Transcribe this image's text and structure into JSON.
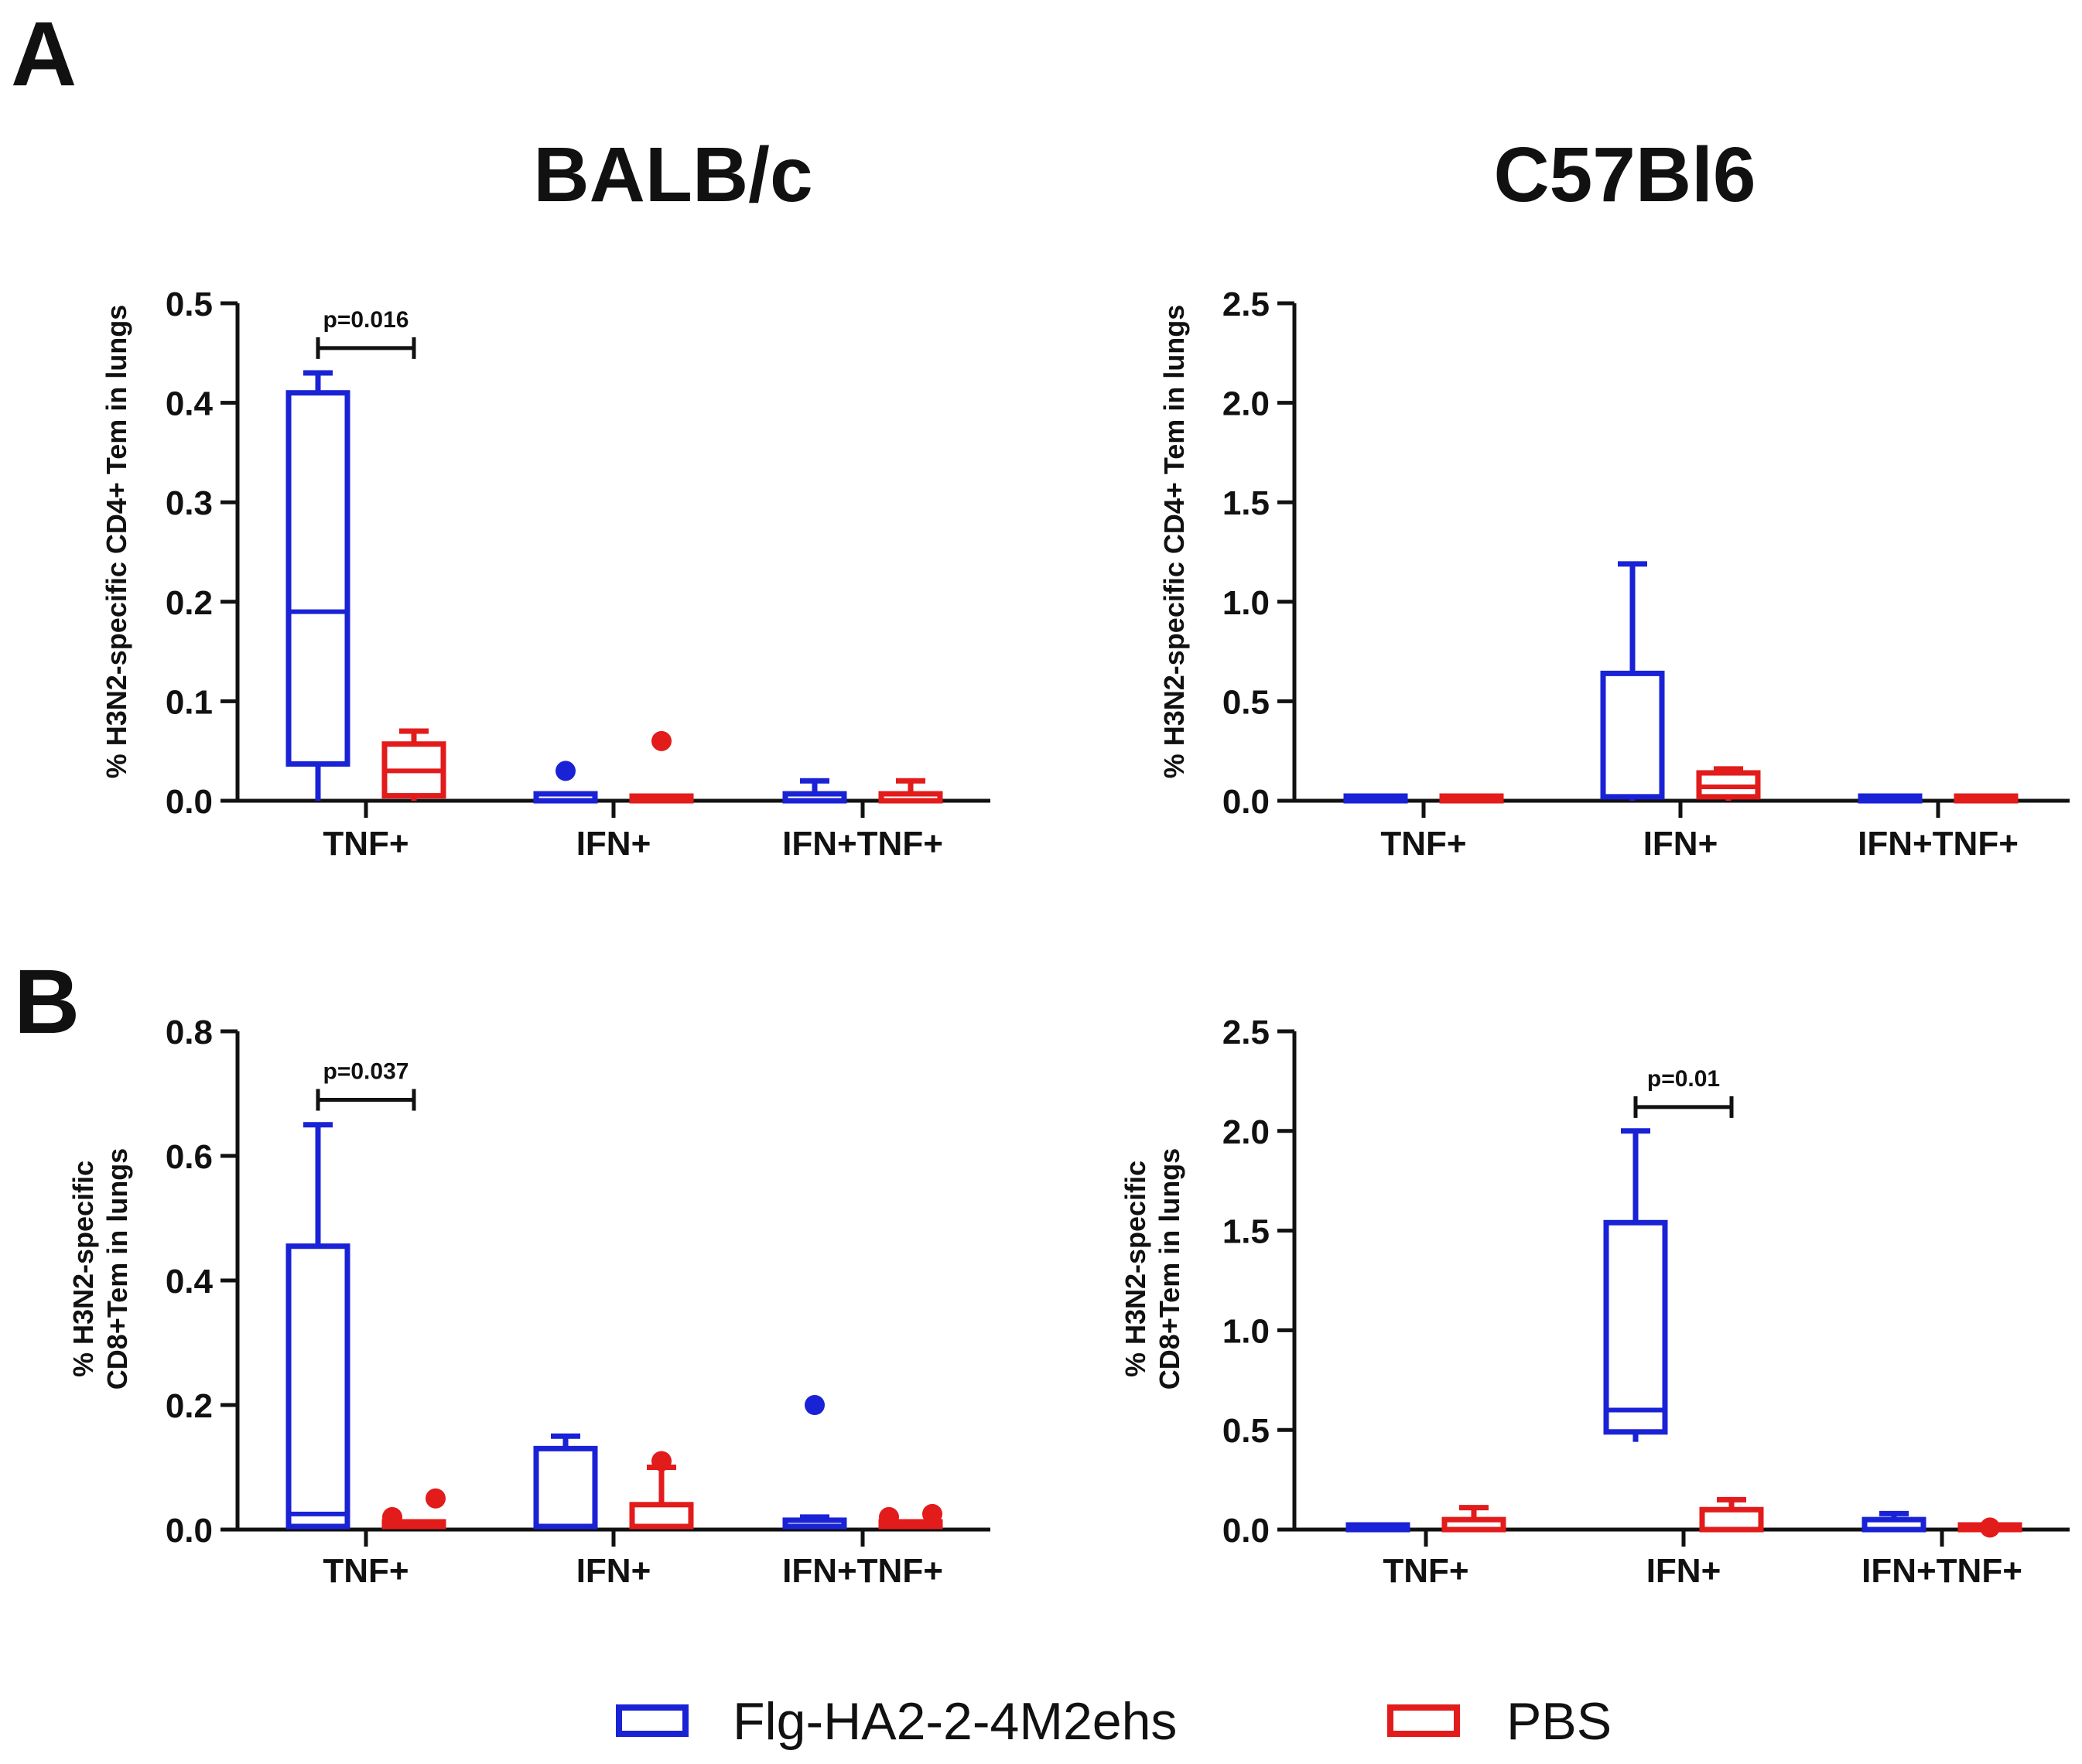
{
  "figure": {
    "panel_labels": [
      "A",
      "B"
    ],
    "column_titles": [
      "BALB/c",
      "C57Bl6"
    ],
    "legend": [
      {
        "name": "Flg-HA2-2-4M2ehs",
        "color": "#1a22d6"
      },
      {
        "name": "PBS",
        "color": "#e21b1b"
      }
    ]
  },
  "colors": {
    "series1": "#1a22d6",
    "series2": "#e21b1b",
    "axis": "#111111"
  },
  "chart_data": [
    {
      "id": "A-balbc",
      "type": "box",
      "title": "BALB/c",
      "ylabel": [
        "% H3N2-specific CD4+ Tem in lungs"
      ],
      "categories": [
        "TNF+",
        "IFN+",
        "IFN+TNF+"
      ],
      "ylim": [
        0,
        0.5
      ],
      "yticks": [
        "0.0",
        "0.1",
        "0.2",
        "0.3",
        "0.4",
        "0.5"
      ],
      "series": [
        {
          "name": "Flg-HA2-2-4M2ehs",
          "boxes": [
            {
              "min": 0.0,
              "q1": 0.037,
              "median": 0.19,
              "q3": 0.41,
              "max": 0.43,
              "outliers": []
            },
            {
              "min": 0.0,
              "q1": 0.0,
              "median": 0.0,
              "q3": 0.007,
              "max": 0.007,
              "outliers": [
                0.03
              ]
            },
            {
              "min": 0.0,
              "q1": 0.0,
              "median": 0.0,
              "q3": 0.007,
              "max": 0.02,
              "outliers": []
            }
          ]
        },
        {
          "name": "PBS",
          "boxes": [
            {
              "min": 0.0,
              "q1": 0.005,
              "median": 0.03,
              "q3": 0.057,
              "max": 0.07,
              "outliers": []
            },
            {
              "min": 0.0,
              "q1": 0.0,
              "median": 0.0,
              "q3": 0.003,
              "max": 0.003,
              "outliers": [
                0.06
              ]
            },
            {
              "min": 0.0,
              "q1": 0.0,
              "median": 0.0,
              "q3": 0.007,
              "max": 0.02,
              "outliers": []
            }
          ]
        }
      ],
      "annotations": [
        {
          "text": "p=0.016",
          "category": 0,
          "y": 0.455
        }
      ]
    },
    {
      "id": "A-c57bl6",
      "type": "box",
      "title": "C57Bl6",
      "ylabel": [
        "% H3N2-specific CD4+ Tem in lungs"
      ],
      "categories": [
        "TNF+",
        "IFN+",
        "IFN+TNF+"
      ],
      "ylim": [
        0,
        2.5
      ],
      "yticks": [
        "0.0",
        "0.5",
        "1.0",
        "1.5",
        "2.0",
        "2.5"
      ],
      "series": [
        {
          "name": "Flg-HA2-2-4M2ehs",
          "boxes": [
            {
              "min": 0.0,
              "q1": 0.0,
              "median": 0.0,
              "q3": 0.02,
              "max": 0.02,
              "outliers": []
            },
            {
              "min": 0.0,
              "q1": 0.02,
              "median": 0.02,
              "q3": 0.64,
              "max": 1.19,
              "outliers": []
            },
            {
              "min": 0.0,
              "q1": 0.0,
              "median": 0.0,
              "q3": 0.02,
              "max": 0.02,
              "outliers": []
            }
          ]
        },
        {
          "name": "PBS",
          "boxes": [
            {
              "min": 0.0,
              "q1": 0.0,
              "median": 0.0,
              "q3": 0.02,
              "max": 0.02,
              "outliers": []
            },
            {
              "min": 0.0,
              "q1": 0.02,
              "median": 0.07,
              "q3": 0.14,
              "max": 0.16,
              "outliers": []
            },
            {
              "min": 0.0,
              "q1": 0.0,
              "median": 0.0,
              "q3": 0.02,
              "max": 0.02,
              "outliers": []
            }
          ]
        }
      ],
      "annotations": []
    },
    {
      "id": "B-balbc",
      "type": "box",
      "title": "",
      "ylabel": [
        "% H3N2-specific",
        "CD8+Tem in lungs"
      ],
      "categories": [
        "TNF+",
        "IFN+",
        "IFN+TNF+"
      ],
      "ylim": [
        0,
        0.8
      ],
      "yticks": [
        "0.0",
        "0.2",
        "0.4",
        "0.6",
        "0.8"
      ],
      "series": [
        {
          "name": "Flg-HA2-2-4M2ehs",
          "boxes": [
            {
              "min": 0.005,
              "q1": 0.005,
              "median": 0.025,
              "q3": 0.455,
              "max": 0.65,
              "outliers": []
            },
            {
              "min": 0.005,
              "q1": 0.005,
              "median": 0.005,
              "q3": 0.13,
              "max": 0.15,
              "outliers": []
            },
            {
              "min": 0.005,
              "q1": 0.005,
              "median": 0.005,
              "q3": 0.015,
              "max": 0.02,
              "outliers": [
                0.2
              ]
            }
          ]
        },
        {
          "name": "PBS",
          "boxes": [
            {
              "min": 0.005,
              "q1": 0.005,
              "median": 0.005,
              "q3": 0.007,
              "max": 0.007,
              "outliers": [
                0.02,
                0.05
              ]
            },
            {
              "min": 0.005,
              "q1": 0.005,
              "median": 0.005,
              "q3": 0.04,
              "max": 0.1,
              "outliers": [
                0.11
              ]
            },
            {
              "min": 0.005,
              "q1": 0.005,
              "median": 0.005,
              "q3": 0.007,
              "max": 0.007,
              "outliers": [
                0.02,
                0.025
              ]
            }
          ]
        }
      ],
      "annotations": [
        {
          "text": "p=0.037",
          "category": 0,
          "y": 0.69
        }
      ]
    },
    {
      "id": "B-c57bl6",
      "type": "box",
      "title": "",
      "ylabel": [
        "% H3N2-specific",
        "CD8+Tem in lungs"
      ],
      "categories": [
        "TNF+",
        "IFN+",
        "IFN+TNF+"
      ],
      "ylim": [
        0,
        2.5
      ],
      "yticks": [
        "0.0",
        "0.5",
        "1.0",
        "1.5",
        "2.0",
        "2.5"
      ],
      "series": [
        {
          "name": "Flg-HA2-2-4M2ehs",
          "boxes": [
            {
              "min": 0.0,
              "q1": 0.0,
              "median": 0.0,
              "q3": 0.02,
              "max": 0.02,
              "outliers": []
            },
            {
              "min": 0.44,
              "q1": 0.49,
              "median": 0.6,
              "q3": 1.54,
              "max": 2.0,
              "outliers": []
            },
            {
              "min": 0.0,
              "q1": 0.0,
              "median": 0.0,
              "q3": 0.05,
              "max": 0.08,
              "outliers": []
            }
          ]
        },
        {
          "name": "PBS",
          "boxes": [
            {
              "min": 0.0,
              "q1": 0.0,
              "median": 0.0,
              "q3": 0.05,
              "max": 0.11,
              "outliers": []
            },
            {
              "min": 0.0,
              "q1": 0.0,
              "median": 0.0,
              "q3": 0.1,
              "max": 0.15,
              "outliers": []
            },
            {
              "min": 0.0,
              "q1": 0.0,
              "median": 0.0,
              "q3": 0.02,
              "max": 0.02,
              "outliers": [
                0.01
              ]
            }
          ]
        }
      ],
      "annotations": [
        {
          "text": "p=0.01",
          "category": 1,
          "y": 2.12
        }
      ]
    }
  ]
}
